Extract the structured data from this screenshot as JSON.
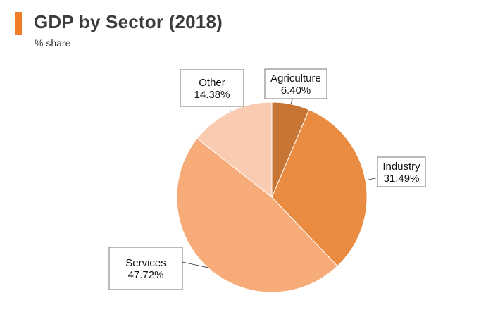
{
  "title": "GDP by Sector (2018)",
  "subtitle": "% share",
  "colors": {
    "accent": "#f07d26",
    "agriculture": "#c67534",
    "industry": "#e98c42",
    "services": "#f7ab78",
    "other": "#f9cbb0"
  },
  "chart_data": {
    "type": "pie",
    "title": "GDP by Sector (2018)",
    "subtitle": "% share",
    "slices": [
      {
        "name": "Agriculture",
        "value": 6.4,
        "label": "6.40%",
        "color": "#c67534"
      },
      {
        "name": "Industry",
        "value": 31.49,
        "label": "31.49%",
        "color": "#e98c42"
      },
      {
        "name": "Services",
        "value": 47.72,
        "label": "47.72%",
        "color": "#f7ab78"
      },
      {
        "name": "Other",
        "value": 14.38,
        "label": "14.38%",
        "color": "#f9cbb0"
      }
    ]
  }
}
